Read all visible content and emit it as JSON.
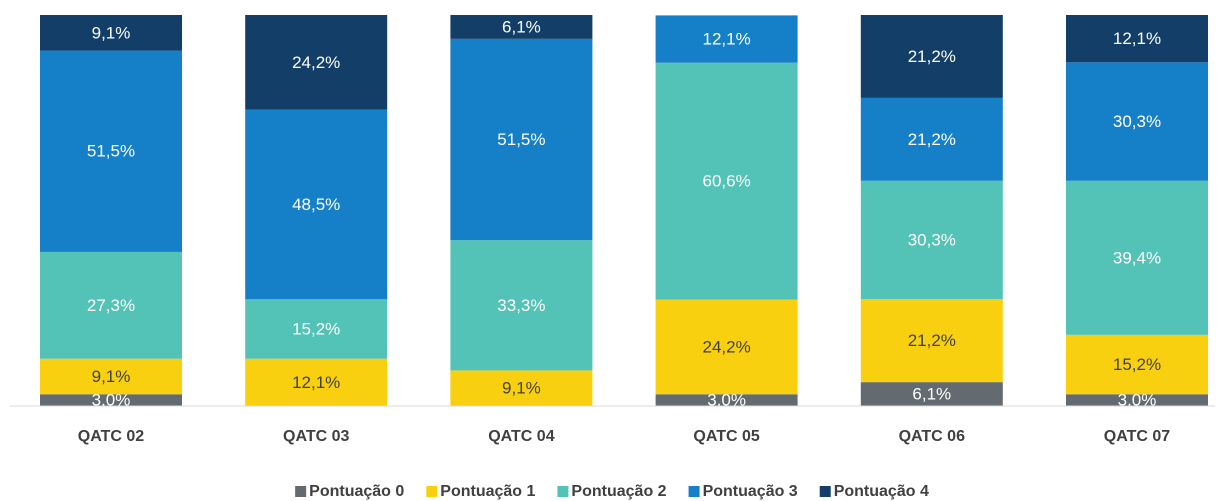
{
  "chart_data": {
    "type": "stacked_bar",
    "categories": [
      "QATC 02",
      "QATC 03",
      "QATC 04",
      "QATC 05",
      "QATC 06",
      "QATC 07"
    ],
    "ylim": [
      0,
      100
    ],
    "legend": "bottom",
    "series": [
      {
        "name": "Pontuação 0",
        "color": "#636b70",
        "values": [
          3.0,
          null,
          null,
          3.0,
          6.1,
          3.0
        ],
        "value_labels": [
          "3,0%",
          null,
          null,
          "3,0%",
          "6,1%",
          "3,0%"
        ]
      },
      {
        "name": "Pontuação 1",
        "color": "#f9d00f",
        "values": [
          9.1,
          12.1,
          9.1,
          24.2,
          21.2,
          15.2
        ],
        "value_labels": [
          "9,1%",
          "12,1%",
          "9,1%",
          "24,2%",
          "21,2%",
          "15,2%"
        ]
      },
      {
        "name": "Pontuação 2",
        "color": "#52c3b6",
        "values": [
          27.3,
          15.2,
          33.3,
          60.6,
          30.3,
          39.4
        ],
        "value_labels": [
          "27,3%",
          "15,2%",
          "33,3%",
          "60,6%",
          "30,3%",
          "39,4%"
        ]
      },
      {
        "name": "Pontuação 3",
        "color": "#1580c7",
        "values": [
          51.5,
          48.5,
          51.5,
          12.1,
          21.2,
          30.3
        ],
        "value_labels": [
          "51,5%",
          "48,5%",
          "51,5%",
          "12,1%",
          "21,2%",
          "30,3%"
        ]
      },
      {
        "name": "Pontuação 4",
        "color": "#123e68",
        "values": [
          9.1,
          24.2,
          6.1,
          null,
          21.2,
          12.1
        ],
        "value_labels": [
          "9,1%",
          "24,2%",
          "6,1%",
          null,
          "21,2%",
          "12,1%"
        ]
      }
    ]
  }
}
